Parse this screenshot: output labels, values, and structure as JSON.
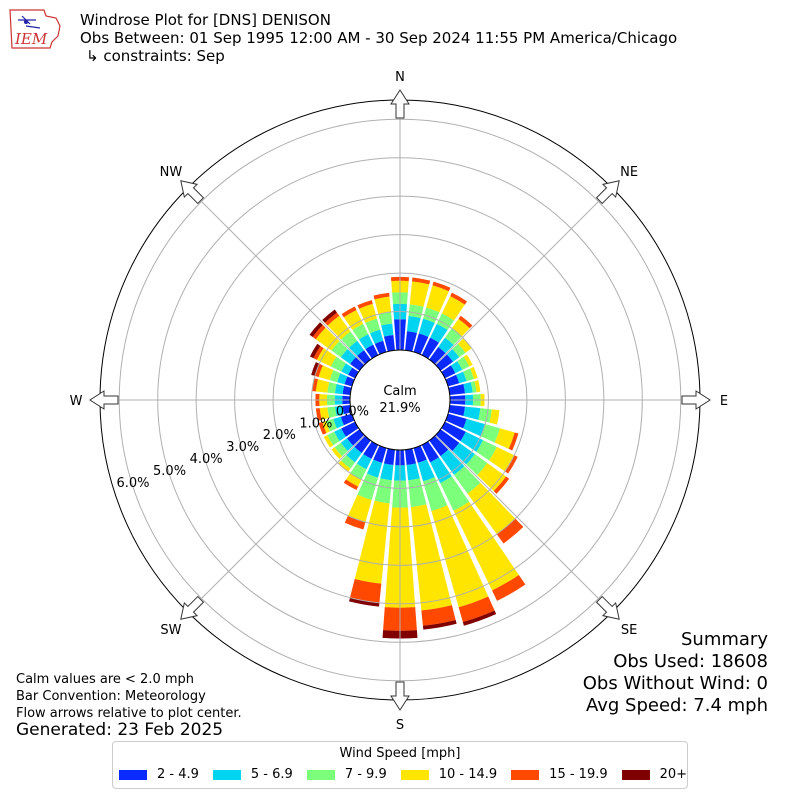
{
  "header": {
    "title": "Windrose Plot for [DNS] DENISON",
    "obs_between": "Obs Between: 01 Sep 1995 12:00 AM - 30 Sep 2024 11:55 PM America/Chicago",
    "constraints": "↳ constraints: Sep"
  },
  "logo_text": "IEM",
  "notes": {
    "calm_note": "Calm values are < 2.0 mph",
    "bar_convention": "Bar Convention: Meteorology",
    "flow_note": "Flow arrows relative to plot center.",
    "generated": "Generated: 23 Feb 2025"
  },
  "summary": {
    "title": "Summary",
    "obs_used": "Obs Used: 18608",
    "obs_without_wind": "Obs Without Wind: 0",
    "avg_speed": "Avg Speed: 7.4 mph"
  },
  "legend": {
    "title": "Wind Speed [mph]",
    "items": [
      {
        "label": "2 - 4.9",
        "color": "#0a2aff"
      },
      {
        "label": "5 - 6.9",
        "color": "#00d4f0"
      },
      {
        "label": "7 - 9.9",
        "color": "#7cff7a"
      },
      {
        "label": "10 - 14.9",
        "color": "#ffe500"
      },
      {
        "label": "15 - 19.9",
        "color": "#ff4800"
      },
      {
        "label": "20+",
        "color": "#800000"
      }
    ]
  },
  "chart_data": {
    "type": "windrose",
    "calm_label": "Calm",
    "calm_value": "21.9%",
    "compass": [
      "N",
      "NE",
      "E",
      "SE",
      "S",
      "SW",
      "W",
      "NW"
    ],
    "radial_ticks": [
      "0.0%",
      "1.0%",
      "2.0%",
      "3.0%",
      "4.0%",
      "5.0%",
      "6.0%"
    ],
    "radial_range": [
      0,
      6.5
    ],
    "series_names": [
      "2 - 4.9",
      "5 - 6.9",
      "7 - 9.9",
      "10 - 14.9",
      "15 - 19.9",
      "20+"
    ],
    "directions": [
      {
        "deg": 0,
        "values": [
          0.8,
          0.4,
          0.3,
          0.3,
          0.1,
          0.0
        ]
      },
      {
        "deg": 10,
        "values": [
          0.5,
          0.4,
          0.3,
          0.6,
          0.1,
          0.0
        ]
      },
      {
        "deg": 20,
        "values": [
          0.5,
          0.4,
          0.3,
          0.6,
          0.1,
          0.0
        ]
      },
      {
        "deg": 30,
        "values": [
          0.5,
          0.4,
          0.3,
          0.5,
          0.1,
          0.0
        ]
      },
      {
        "deg": 40,
        "values": [
          0.4,
          0.3,
          0.3,
          0.3,
          0.1,
          0.0
        ]
      },
      {
        "deg": 50,
        "values": [
          0.4,
          0.2,
          0.2,
          0.2,
          0.0,
          0.0
        ]
      },
      {
        "deg": 60,
        "values": [
          0.3,
          0.2,
          0.2,
          0.1,
          0.0,
          0.0
        ]
      },
      {
        "deg": 70,
        "values": [
          0.3,
          0.2,
          0.2,
          0.1,
          0.0,
          0.0
        ]
      },
      {
        "deg": 80,
        "values": [
          0.4,
          0.2,
          0.1,
          0.1,
          0.0,
          0.0
        ]
      },
      {
        "deg": 90,
        "values": [
          0.4,
          0.2,
          0.2,
          0.1,
          0.0,
          0.0
        ]
      },
      {
        "deg": 100,
        "values": [
          0.4,
          0.4,
          0.3,
          0.2,
          0.0,
          0.0
        ]
      },
      {
        "deg": 110,
        "values": [
          0.5,
          0.5,
          0.4,
          0.4,
          0.1,
          0.0
        ]
      },
      {
        "deg": 120,
        "values": [
          0.6,
          0.5,
          0.4,
          0.5,
          0.1,
          0.0
        ]
      },
      {
        "deg": 130,
        "values": [
          0.6,
          0.5,
          0.4,
          0.6,
          0.1,
          0.0
        ]
      },
      {
        "deg": 140,
        "values": [
          0.5,
          0.6,
          0.6,
          1.3,
          0.3,
          0.0
        ]
      },
      {
        "deg": 150,
        "values": [
          0.5,
          0.6,
          0.8,
          2.3,
          0.3,
          0.0
        ]
      },
      {
        "deg": 160,
        "values": [
          0.4,
          0.5,
          0.8,
          2.6,
          0.4,
          0.1
        ]
      },
      {
        "deg": 170,
        "values": [
          0.4,
          0.4,
          0.7,
          2.7,
          0.4,
          0.1
        ]
      },
      {
        "deg": 180,
        "values": [
          0.4,
          0.4,
          0.7,
          2.6,
          0.6,
          0.2
        ]
      },
      {
        "deg": 190,
        "values": [
          0.4,
          0.4,
          0.6,
          2.1,
          0.5,
          0.1
        ]
      },
      {
        "deg": 200,
        "values": [
          0.4,
          0.4,
          0.6,
          0.6,
          0.2,
          0.0
        ]
      },
      {
        "deg": 210,
        "values": [
          0.4,
          0.3,
          0.3,
          0.2,
          0.1,
          0.0
        ]
      },
      {
        "deg": 220,
        "values": [
          0.4,
          0.3,
          0.2,
          0.1,
          0.0,
          0.0
        ]
      },
      {
        "deg": 230,
        "values": [
          0.4,
          0.2,
          0.2,
          0.1,
          0.0,
          0.0
        ]
      },
      {
        "deg": 240,
        "values": [
          0.4,
          0.2,
          0.2,
          0.1,
          0.0,
          0.0
        ]
      },
      {
        "deg": 250,
        "values": [
          0.3,
          0.2,
          0.2,
          0.1,
          0.1,
          0.0
        ]
      },
      {
        "deg": 260,
        "values": [
          0.2,
          0.2,
          0.2,
          0.2,
          0.1,
          0.0
        ]
      },
      {
        "deg": 270,
        "values": [
          0.2,
          0.2,
          0.2,
          0.2,
          0.1,
          0.0
        ]
      },
      {
        "deg": 280,
        "values": [
          0.2,
          0.2,
          0.2,
          0.3,
          0.1,
          0.0
        ]
      },
      {
        "deg": 290,
        "values": [
          0.2,
          0.2,
          0.2,
          0.3,
          0.1,
          0.1
        ]
      },
      {
        "deg": 300,
        "values": [
          0.2,
          0.2,
          0.3,
          0.4,
          0.1,
          0.1
        ]
      },
      {
        "deg": 310,
        "values": [
          0.3,
          0.3,
          0.3,
          0.5,
          0.1,
          0.1
        ]
      },
      {
        "deg": 320,
        "values": [
          0.3,
          0.3,
          0.3,
          0.5,
          0.1,
          0.1
        ]
      },
      {
        "deg": 330,
        "values": [
          0.3,
          0.3,
          0.3,
          0.4,
          0.1,
          0.0
        ]
      },
      {
        "deg": 340,
        "values": [
          0.3,
          0.3,
          0.3,
          0.4,
          0.1,
          0.0
        ]
      },
      {
        "deg": 350,
        "values": [
          0.4,
          0.3,
          0.3,
          0.4,
          0.1,
          0.0
        ]
      }
    ]
  }
}
